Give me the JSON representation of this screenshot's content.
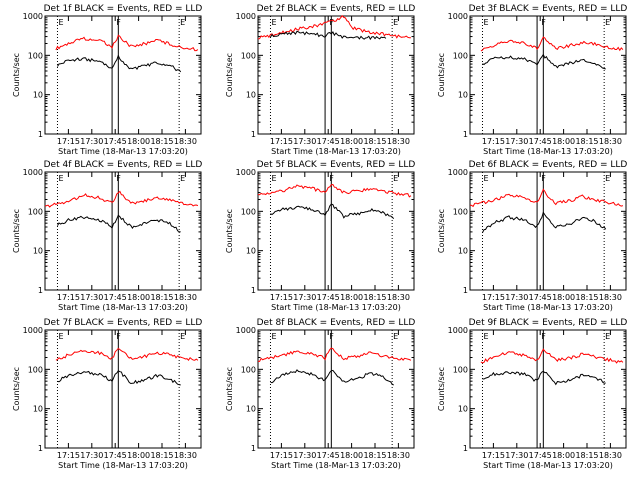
{
  "chart_data": [
    {
      "type": "line",
      "title": "Det 1f BLACK = Events, RED = LLD",
      "xlabel": "Start Time (18-Mar-13 17:03:20)",
      "ylabel": "Counts/sec",
      "y_scale": "log",
      "ylim": [
        1,
        1000
      ],
      "yticks": [
        "1",
        "10",
        "100",
        "1000"
      ],
      "xticks": [
        "17:15",
        "17:30",
        "17:45",
        "18:00",
        "18:15",
        "18:30"
      ],
      "flags": [
        "E",
        "F",
        "E"
      ],
      "series": [
        {
          "name": "RED = LLD",
          "color": "#ff0000",
          "x": [
            "17:07",
            "17:15",
            "17:25",
            "17:35",
            "17:43",
            "17:47",
            "17:55",
            "18:05",
            "18:12",
            "18:20",
            "18:30",
            "18:38"
          ],
          "values": [
            150,
            200,
            270,
            240,
            170,
            300,
            170,
            200,
            250,
            190,
            150,
            140
          ]
        },
        {
          "name": "BLACK = Events",
          "color": "#000000",
          "x": [
            "17:08",
            "17:15",
            "17:25",
            "17:35",
            "17:43",
            "17:47",
            "17:55",
            "18:05",
            "18:12",
            "18:20",
            "18:27"
          ],
          "values": [
            55,
            75,
            80,
            70,
            45,
            90,
            45,
            55,
            65,
            55,
            38
          ]
        }
      ]
    },
    {
      "type": "line",
      "title": "Det 2f BLACK = Events, RED = LLD",
      "xlabel": "Start Time (18-Mar-13 17:03:20)",
      "ylabel": "Counts/sec",
      "y_scale": "log",
      "ylim": [
        1,
        1000
      ],
      "yticks": [
        "1",
        "10",
        "100",
        "1000"
      ],
      "xticks": [
        "17:15",
        "17:30",
        "17:45",
        "18:00",
        "18:15",
        "18:30"
      ],
      "flags": [
        "E",
        "F",
        "E"
      ],
      "series": [
        {
          "name": "RED = LLD",
          "color": "#ff0000",
          "x": [
            "17:00",
            "17:10",
            "17:20",
            "17:30",
            "17:40",
            "17:45",
            "17:50",
            "17:55",
            "18:00",
            "18:10",
            "18:20",
            "18:30",
            "18:38"
          ],
          "values": [
            280,
            330,
            420,
            500,
            600,
            700,
            800,
            1000,
            500,
            400,
            350,
            300,
            280
          ]
        },
        {
          "name": "BLACK = Events",
          "color": "#000000",
          "x": [
            "17:08",
            "17:15",
            "17:25",
            "17:35",
            "17:43",
            "17:47",
            "17:55",
            "18:05",
            "18:12",
            "18:22"
          ],
          "values": [
            300,
            360,
            380,
            350,
            310,
            380,
            290,
            280,
            280,
            270
          ]
        }
      ]
    },
    {
      "type": "line",
      "title": "Det 3f BLACK = Events, RED = LLD",
      "xlabel": "Start Time (18-Mar-13 17:03:20)",
      "ylabel": "Counts/sec",
      "y_scale": "log",
      "ylim": [
        1,
        1000
      ],
      "yticks": [
        "1",
        "10",
        "100",
        "1000"
      ],
      "xticks": [
        "17:15",
        "17:30",
        "17:45",
        "18:00",
        "18:15",
        "18:30"
      ],
      "flags": [
        "E",
        "F",
        "E"
      ],
      "series": [
        {
          "name": "RED = LLD",
          "color": "#ff0000",
          "x": [
            "17:07",
            "17:15",
            "17:25",
            "17:35",
            "17:43",
            "17:47",
            "17:55",
            "18:05",
            "18:12",
            "18:20",
            "18:30",
            "18:38"
          ],
          "values": [
            130,
            180,
            230,
            210,
            150,
            280,
            150,
            180,
            210,
            190,
            160,
            140
          ]
        },
        {
          "name": "BLACK = Events",
          "color": "#000000",
          "x": [
            "17:08",
            "17:15",
            "17:25",
            "17:35",
            "17:43",
            "17:47",
            "17:55",
            "18:05",
            "18:12",
            "18:20",
            "18:27"
          ],
          "values": [
            60,
            85,
            90,
            80,
            55,
            100,
            50,
            65,
            75,
            60,
            45
          ]
        }
      ]
    },
    {
      "type": "line",
      "title": "Det 4f BLACK = Events, RED = LLD",
      "xlabel": "Start Time (18-Mar-13 17:03:20)",
      "ylabel": "Counts/sec",
      "y_scale": "log",
      "ylim": [
        1,
        1000
      ],
      "yticks": [
        "1",
        "10",
        "100",
        "1000"
      ],
      "xticks": [
        "17:15",
        "17:30",
        "17:45",
        "18:00",
        "18:15",
        "18:30"
      ],
      "flags": [
        "E",
        "F",
        "E"
      ],
      "series": [
        {
          "name": "RED = LLD",
          "color": "#ff0000",
          "x": [
            "17:00",
            "17:15",
            "17:25",
            "17:35",
            "17:43",
            "17:47",
            "17:55",
            "18:05",
            "18:12",
            "18:20",
            "18:30",
            "18:38"
          ],
          "values": [
            130,
            180,
            260,
            220,
            160,
            320,
            160,
            190,
            230,
            190,
            150,
            140
          ]
        },
        {
          "name": "BLACK = Events",
          "color": "#000000",
          "x": [
            "17:08",
            "17:15",
            "17:25",
            "17:35",
            "17:43",
            "17:47",
            "17:55",
            "18:05",
            "18:12",
            "18:20",
            "18:27"
          ],
          "values": [
            45,
            60,
            70,
            60,
            40,
            80,
            40,
            50,
            60,
            50,
            30
          ]
        }
      ]
    },
    {
      "type": "line",
      "title": "Det 5f BLACK = Events, RED = LLD",
      "xlabel": "Start Time (18-Mar-13 17:03:20)",
      "ylabel": "Counts/sec",
      "y_scale": "log",
      "ylim": [
        1,
        1000
      ],
      "yticks": [
        "1",
        "10",
        "100",
        "1000"
      ],
      "xticks": [
        "17:15",
        "17:30",
        "17:45",
        "18:00",
        "18:15",
        "18:30"
      ],
      "flags": [
        "E",
        "F",
        "E"
      ],
      "series": [
        {
          "name": "RED = LLD",
          "color": "#ff0000",
          "x": [
            "17:00",
            "17:15",
            "17:25",
            "17:35",
            "17:43",
            "17:47",
            "17:55",
            "18:05",
            "18:12",
            "18:20",
            "18:30",
            "18:38"
          ],
          "values": [
            260,
            330,
            430,
            380,
            300,
            500,
            300,
            330,
            380,
            330,
            280,
            250
          ]
        },
        {
          "name": "BLACK = Events",
          "color": "#000000",
          "x": [
            "17:08",
            "17:15",
            "17:25",
            "17:35",
            "17:43",
            "17:47",
            "17:55",
            "18:05",
            "18:12",
            "18:20",
            "18:27"
          ],
          "values": [
            80,
            110,
            130,
            110,
            80,
            150,
            75,
            90,
            110,
            95,
            65
          ]
        }
      ]
    },
    {
      "type": "line",
      "title": "Det 6f BLACK = Events, RED = LLD",
      "xlabel": "Start Time (18-Mar-13 17:03:20)",
      "ylabel": "Counts/sec",
      "y_scale": "log",
      "ylim": [
        1,
        1000
      ],
      "yticks": [
        "1",
        "10",
        "100",
        "1000"
      ],
      "xticks": [
        "17:15",
        "17:30",
        "17:45",
        "18:00",
        "18:15",
        "18:30"
      ],
      "flags": [
        "E",
        "F",
        "E"
      ],
      "series": [
        {
          "name": "RED = LLD",
          "color": "#ff0000",
          "x": [
            "17:00",
            "17:15",
            "17:25",
            "17:35",
            "17:43",
            "17:47",
            "17:55",
            "18:05",
            "18:12",
            "18:20",
            "18:30",
            "18:38"
          ],
          "values": [
            140,
            190,
            260,
            220,
            160,
            330,
            160,
            190,
            240,
            200,
            160,
            140
          ]
        },
        {
          "name": "BLACK = Events",
          "color": "#000000",
          "x": [
            "17:08",
            "17:15",
            "17:25",
            "17:35",
            "17:43",
            "17:47",
            "17:55",
            "18:05",
            "18:12",
            "18:20",
            "18:27"
          ],
          "values": [
            30,
            50,
            70,
            60,
            40,
            90,
            40,
            50,
            70,
            55,
            35
          ]
        }
      ]
    },
    {
      "type": "line",
      "title": "Det 7f BLACK = Events, RED = LLD",
      "xlabel": "Start Time (18-Mar-13 17:03:20)",
      "ylabel": "Counts/sec",
      "y_scale": "log",
      "ylim": [
        1,
        1000
      ],
      "yticks": [
        "1",
        "10",
        "100",
        "1000"
      ],
      "xticks": [
        "17:15",
        "17:30",
        "17:45",
        "18:00",
        "18:15",
        "18:30"
      ],
      "flags": [
        "E",
        "F",
        "E"
      ],
      "series": [
        {
          "name": "RED = LLD",
          "color": "#ff0000",
          "x": [
            "17:07",
            "17:15",
            "17:25",
            "17:35",
            "17:43",
            "17:47",
            "17:55",
            "18:05",
            "18:12",
            "18:20",
            "18:30",
            "18:38"
          ],
          "values": [
            170,
            230,
            300,
            260,
            190,
            340,
            190,
            220,
            270,
            230,
            190,
            170
          ]
        },
        {
          "name": "BLACK = Events",
          "color": "#000000",
          "x": [
            "17:08",
            "17:15",
            "17:25",
            "17:35",
            "17:43",
            "17:47",
            "17:55",
            "18:05",
            "18:12",
            "18:20",
            "18:27"
          ],
          "values": [
            50,
            70,
            85,
            75,
            50,
            95,
            45,
            55,
            70,
            55,
            40
          ]
        }
      ]
    },
    {
      "type": "line",
      "title": "Det 8f BLACK = Events, RED = LLD",
      "xlabel": "Start Time (18-Mar-13 17:03:20)",
      "ylabel": "Counts/sec",
      "y_scale": "log",
      "ylim": [
        1,
        1000
      ],
      "yticks": [
        "1",
        "10",
        "100",
        "1000"
      ],
      "xticks": [
        "17:15",
        "17:30",
        "17:45",
        "18:00",
        "18:15",
        "18:30"
      ],
      "flags": [
        "E",
        "F",
        "E"
      ],
      "series": [
        {
          "name": "RED = LLD",
          "color": "#ff0000",
          "x": [
            "17:00",
            "17:15",
            "17:25",
            "17:35",
            "17:43",
            "17:47",
            "17:55",
            "18:05",
            "18:12",
            "18:20",
            "18:30",
            "18:38"
          ],
          "values": [
            170,
            220,
            290,
            250,
            190,
            340,
            190,
            220,
            260,
            220,
            180,
            170
          ]
        },
        {
          "name": "BLACK = Events",
          "color": "#000000",
          "x": [
            "17:08",
            "17:15",
            "17:25",
            "17:35",
            "17:43",
            "17:47",
            "17:55",
            "18:05",
            "18:12",
            "18:20",
            "18:27"
          ],
          "values": [
            45,
            70,
            90,
            75,
            50,
            100,
            50,
            60,
            80,
            65,
            40
          ]
        }
      ]
    },
    {
      "type": "line",
      "title": "Det 9f BLACK = Events, RED = LLD",
      "xlabel": "Start Time (18-Mar-13 17:03:20)",
      "ylabel": "Counts/sec",
      "y_scale": "log",
      "ylim": [
        1,
        1000
      ],
      "yticks": [
        "1",
        "10",
        "100",
        "1000"
      ],
      "xticks": [
        "17:15",
        "17:30",
        "17:45",
        "18:00",
        "18:15",
        "18:30"
      ],
      "flags": [
        "E",
        "F",
        "E"
      ],
      "series": [
        {
          "name": "RED = LLD",
          "color": "#ff0000",
          "x": [
            "17:07",
            "17:15",
            "17:25",
            "17:35",
            "17:43",
            "17:47",
            "17:55",
            "18:05",
            "18:12",
            "18:20",
            "18:30",
            "18:38"
          ],
          "values": [
            150,
            200,
            270,
            230,
            170,
            320,
            170,
            200,
            240,
            210,
            170,
            150
          ]
        },
        {
          "name": "BLACK = Events",
          "color": "#000000",
          "x": [
            "17:08",
            "17:15",
            "17:25",
            "17:35",
            "17:43",
            "17:47",
            "17:55",
            "18:05",
            "18:12",
            "18:20",
            "18:27"
          ],
          "values": [
            55,
            75,
            85,
            75,
            50,
            95,
            45,
            55,
            70,
            60,
            45
          ]
        }
      ]
    }
  ]
}
